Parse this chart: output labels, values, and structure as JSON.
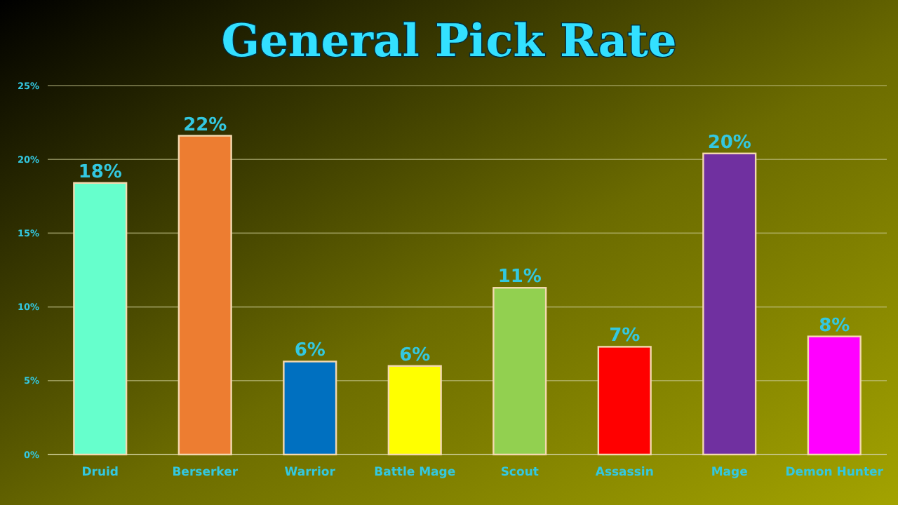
{
  "chart_data": {
    "type": "bar",
    "title": "General Pick Rate",
    "categories": [
      "Druid",
      "Berserker",
      "Warrior",
      "Battle Mage",
      "Scout",
      "Assassin",
      "Mage",
      "Demon Hunter"
    ],
    "values": [
      18.4,
      21.6,
      6.3,
      6.0,
      11.3,
      7.3,
      20.4,
      8.0
    ],
    "colors": [
      "#66ffcc",
      "#ed7d31",
      "#0070c0",
      "#ffff00",
      "#92d050",
      "#ff0000",
      "#7030a0",
      "#ff00ff"
    ],
    "value_labels": [
      "18%",
      "22%",
      "6%",
      "6%",
      "11%",
      "7%",
      "20%",
      "8%"
    ],
    "ylim": [
      0,
      25
    ],
    "yticks": [
      {
        "value": 0,
        "label": "0%"
      },
      {
        "value": 5,
        "label": "5%"
      },
      {
        "value": 10,
        "label": "10%"
      },
      {
        "value": 15,
        "label": "15%"
      },
      {
        "value": 20,
        "label": "20%"
      },
      {
        "value": 25,
        "label": "25%"
      }
    ],
    "grid": "y"
  }
}
